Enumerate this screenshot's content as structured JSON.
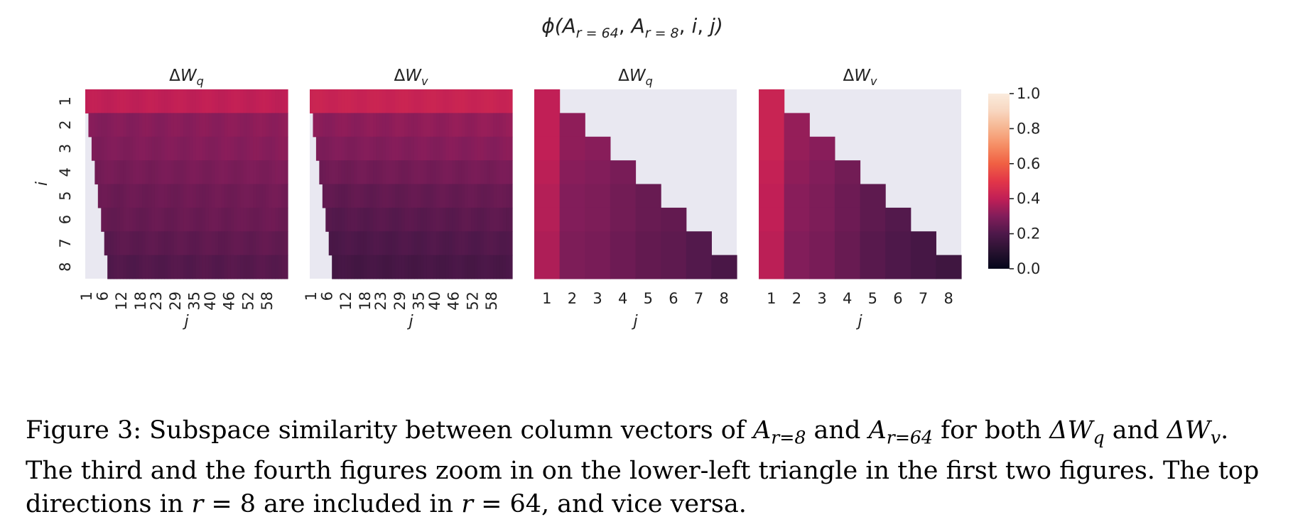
{
  "chart_data": {
    "type": "heatmap",
    "title": "ϕ(A_{r=64}, A_{r=8}, i, j)",
    "colorbar": {
      "range": [
        0.0,
        1.0
      ],
      "ticks": [
        "0.0",
        "0.2",
        "0.4",
        "0.6",
        "0.8",
        "1.0"
      ]
    },
    "ylabel": "i",
    "xlabel": "j",
    "row_tick_labels": [
      "1",
      "2",
      "3",
      "4",
      "5",
      "6",
      "7",
      "8"
    ],
    "panels": [
      {
        "title": "ΔW_q",
        "columns": 64,
        "col_tick_labels": [
          "1",
          "6",
          "12",
          "18",
          "23",
          "29",
          "35",
          "40",
          "46",
          "52",
          "58"
        ],
        "masked_cols_per_row": [
          0,
          1,
          2,
          3,
          4,
          5,
          6,
          7
        ],
        "row_values": [
          0.4,
          0.32,
          0.31,
          0.29,
          0.27,
          0.26,
          0.24,
          0.22
        ]
      },
      {
        "title": "ΔW_v",
        "columns": 64,
        "col_tick_labels": [
          "1",
          "6",
          "12",
          "18",
          "23",
          "29",
          "35",
          "40",
          "46",
          "52",
          "58"
        ],
        "masked_cols_per_row": [
          0,
          1,
          2,
          3,
          4,
          5,
          6,
          7
        ],
        "row_values": [
          0.42,
          0.33,
          0.31,
          0.28,
          0.25,
          0.23,
          0.21,
          0.19
        ]
      },
      {
        "title": "ΔW_q",
        "columns": 8,
        "col_tick_labels": [
          "1",
          "2",
          "3",
          "4",
          "5",
          "6",
          "7",
          "8"
        ],
        "lower_triangle": true,
        "col_values": [
          0.4,
          0.32,
          0.31,
          0.29,
          0.27,
          0.26,
          0.24,
          0.22
        ],
        "row_adjust": [
          0.0,
          0.0,
          0.0,
          -0.01,
          -0.02,
          -0.02,
          -0.03,
          -0.03
        ]
      },
      {
        "title": "ΔW_v",
        "columns": 8,
        "col_tick_labels": [
          "1",
          "2",
          "3",
          "4",
          "5",
          "6",
          "7",
          "8"
        ],
        "lower_triangle": true,
        "col_values": [
          0.42,
          0.33,
          0.31,
          0.28,
          0.25,
          0.23,
          0.21,
          0.19
        ],
        "row_adjust": [
          0.0,
          0.0,
          0.0,
          -0.01,
          -0.02,
          -0.02,
          -0.03,
          -0.03
        ]
      }
    ]
  },
  "caption": {
    "line1": {
      "prefix": "Figure 3: Subspace similarity between column vectors of ",
      "a8_base": "A",
      "a8_sub": "r=8",
      "mid": " and ",
      "a64_base": "A",
      "a64_sub": "r=64",
      "mid2": " for both ",
      "wq_base": "ΔW",
      "wq_sub": "q",
      "mid3": " and ",
      "wv_base": "ΔW",
      "wv_sub": "v",
      "end": "."
    },
    "line2": "The third and the fourth figures zoom in on the lower-left triangle in the first two figures.  The top",
    "line3": {
      "prefix": "directions in ",
      "r1": "r",
      "eq1": " = 8 are included in ",
      "r2": "r",
      "eq2": " = 64, and vice versa."
    }
  }
}
